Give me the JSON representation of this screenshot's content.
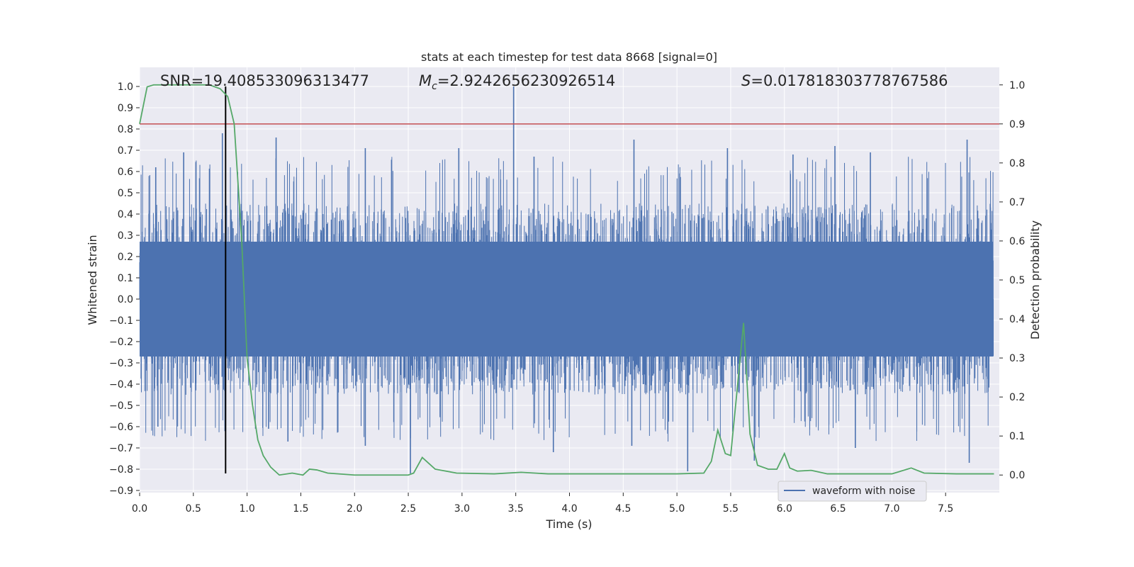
{
  "chart_data": {
    "type": "line",
    "title": "stats at each timestep for test data 8668 [signal=0]",
    "xlabel": "Time (s)",
    "ylabel_left": "Whitened strain",
    "ylabel_right": "Detection probability",
    "xlim": [
      0.0,
      8.0
    ],
    "ylim_left": [
      -0.91,
      1.09
    ],
    "ylim_right": [
      -0.045,
      1.045
    ],
    "x_ticks": [
      "0.0",
      "0.5",
      "1.0",
      "1.5",
      "2.0",
      "2.5",
      "3.0",
      "3.5",
      "4.0",
      "4.5",
      "5.0",
      "5.5",
      "6.0",
      "6.5",
      "7.0",
      "7.5"
    ],
    "y_left_ticks": [
      "-0.9",
      "-0.8",
      "-0.7",
      "-0.6",
      "-0.5",
      "-0.4",
      "-0.3",
      "-0.2",
      "-0.1",
      "0.0",
      "0.1",
      "0.2",
      "0.3",
      "0.4",
      "0.5",
      "0.6",
      "0.7",
      "0.8",
      "0.9",
      "1.0"
    ],
    "y_right_ticks": [
      "0.0",
      "0.1",
      "0.2",
      "0.3",
      "0.4",
      "0.5",
      "0.6",
      "0.7",
      "0.8",
      "0.9",
      "1.0"
    ],
    "grid": true,
    "legend_position": "bottom-right",
    "annotations": {
      "snr": "SNR=19.408533096313477",
      "mc_symbol": "M",
      "mc_sub": "c",
      "mc_value": "=2.9242656230926514",
      "s_symbol": "S",
      "s_value": "=0.017818303778767586"
    },
    "series": [
      {
        "name": "waveform with noise",
        "color": "#4c72b0",
        "axis": "left",
        "spikes": [
          {
            "x": 0.15,
            "y": 0.62
          },
          {
            "x": 0.41,
            "y": 0.69
          },
          {
            "x": 0.77,
            "y": 0.78
          },
          {
            "x": 1.27,
            "y": 0.76
          },
          {
            "x": 2.1,
            "y": 0.71
          },
          {
            "x": 2.97,
            "y": 0.71
          },
          {
            "x": 3.48,
            "y": 1.0
          },
          {
            "x": 3.67,
            "y": 0.67
          },
          {
            "x": 4.6,
            "y": 0.75
          },
          {
            "x": 5.47,
            "y": 0.71
          },
          {
            "x": 6.08,
            "y": 0.68
          },
          {
            "x": 6.47,
            "y": 0.72
          },
          {
            "x": 6.8,
            "y": 0.69
          },
          {
            "x": 7.7,
            "y": 0.75
          },
          {
            "x": 0.17,
            "y": -0.6
          },
          {
            "x": 1.2,
            "y": -0.61
          },
          {
            "x": 1.38,
            "y": -0.67
          },
          {
            "x": 2.1,
            "y": -0.69
          },
          {
            "x": 2.52,
            "y": -0.82
          },
          {
            "x": 3.85,
            "y": -0.72
          },
          {
            "x": 4.58,
            "y": -0.69
          },
          {
            "x": 5.1,
            "y": -0.81
          },
          {
            "x": 5.72,
            "y": -0.76
          },
          {
            "x": 6.66,
            "y": -0.7
          },
          {
            "x": 7.72,
            "y": -0.77
          }
        ],
        "band_core": [
          -0.27,
          0.27
        ],
        "band_typical": [
          -0.48,
          0.45
        ]
      },
      {
        "name": "",
        "color": "#55a868",
        "axis": "right",
        "x": [
          0.0,
          0.07,
          0.13,
          0.5,
          0.65,
          0.75,
          0.82,
          0.88,
          0.95,
          1.0,
          1.05,
          1.1,
          1.15,
          1.22,
          1.3,
          1.42,
          1.52,
          1.58,
          1.65,
          1.75,
          2.0,
          2.3,
          2.5,
          2.55,
          2.63,
          2.75,
          2.95,
          3.3,
          3.55,
          3.8,
          4.1,
          4.5,
          5.0,
          5.25,
          5.32,
          5.38,
          5.45,
          5.5,
          5.55,
          5.62,
          5.68,
          5.75,
          5.85,
          5.93,
          6.0,
          6.05,
          6.12,
          6.25,
          6.4,
          6.6,
          7.0,
          7.18,
          7.3,
          7.6,
          7.95
        ],
        "y": [
          0.9,
          0.995,
          1.0,
          1.0,
          1.0,
          0.99,
          0.97,
          0.9,
          0.6,
          0.3,
          0.18,
          0.09,
          0.05,
          0.02,
          0.0,
          0.005,
          0.0,
          0.015,
          0.013,
          0.005,
          0.0,
          0.0,
          0.0,
          0.005,
          0.045,
          0.015,
          0.005,
          0.003,
          0.007,
          0.003,
          0.003,
          0.003,
          0.003,
          0.005,
          0.035,
          0.115,
          0.055,
          0.05,
          0.19,
          0.39,
          0.105,
          0.025,
          0.015,
          0.015,
          0.055,
          0.018,
          0.01,
          0.012,
          0.003,
          0.003,
          0.003,
          0.018,
          0.005,
          0.003,
          0.003
        ]
      }
    ],
    "threshold_line": {
      "axis": "right",
      "y": 0.9,
      "color": "#c44e52"
    },
    "marker_line": {
      "x": 0.8,
      "y_from": -0.82,
      "y_to": 1.0,
      "color": "#000000"
    }
  }
}
